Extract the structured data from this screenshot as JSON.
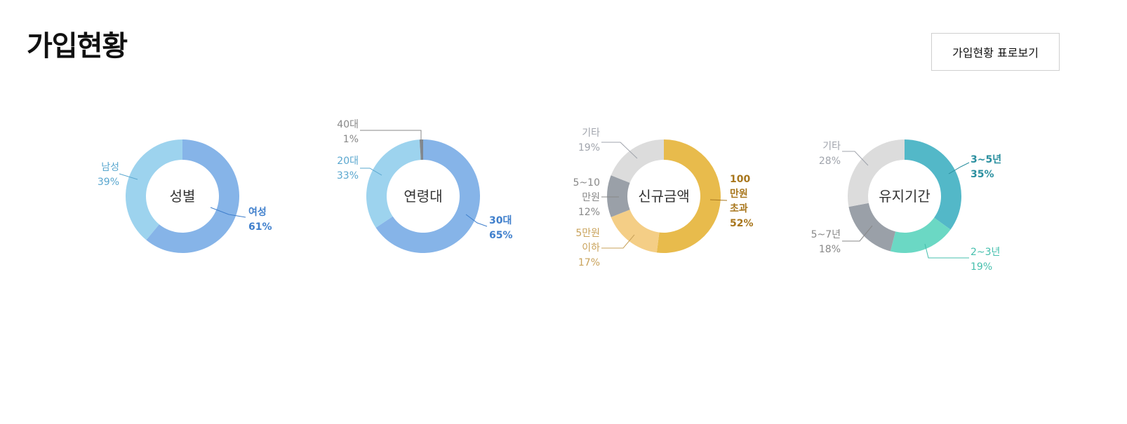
{
  "header": {
    "title": "가입현황",
    "table_button_label": "가입현황 표로보기"
  },
  "chart_data": [
    {
      "type": "pie",
      "center_label": "성별",
      "slices": [
        {
          "label": [
            "여성"
          ],
          "value": 61,
          "value_label": "61%",
          "color": "#86b4e8",
          "label_color": "#3f7fcc",
          "bold": true
        },
        {
          "label": [
            "남성"
          ],
          "value": 39,
          "value_label": "39%",
          "color": "#9dd3ee",
          "label_color": "#5aa7cf",
          "bold": false
        }
      ]
    },
    {
      "type": "pie",
      "center_label": "연령대",
      "slices": [
        {
          "label": [
            "30대"
          ],
          "value": 65,
          "value_label": "65%",
          "color": "#86b4e8",
          "label_color": "#3f7fcc",
          "bold": true
        },
        {
          "label": [
            "20대"
          ],
          "value": 33,
          "value_label": "33%",
          "color": "#9dd3ee",
          "label_color": "#5aa7cf",
          "bold": false
        },
        {
          "label": [
            "40대"
          ],
          "value": 1,
          "value_label": "1%",
          "color": "#7f8790",
          "label_color": "#888888",
          "bold": false
        }
      ]
    },
    {
      "type": "pie",
      "center_label": "신규금액",
      "slices": [
        {
          "label": [
            "100",
            "만원",
            "초과"
          ],
          "value": 52,
          "value_label": "52%",
          "color": "#e8bb4c",
          "label_color": "#a8761c",
          "bold": true
        },
        {
          "label": [
            "5만원",
            "이하"
          ],
          "value": 17,
          "value_label": "17%",
          "color": "#f4ce86",
          "label_color": "#c9a25a",
          "bold": false
        },
        {
          "label": [
            "5~10",
            "만원"
          ],
          "value": 12,
          "value_label": "12%",
          "color": "#9aa0a8",
          "label_color": "#888888",
          "bold": false
        },
        {
          "label": [
            "기타"
          ],
          "value": 19,
          "value_label": "19%",
          "color": "#dcdcdc",
          "label_color": "#a0a4ac",
          "bold": false
        }
      ]
    },
    {
      "type": "pie",
      "center_label": "유지기간",
      "slices": [
        {
          "label": [
            "3~5년"
          ],
          "value": 35,
          "value_label": "35%",
          "color": "#53b8c8",
          "label_color": "#2a8f9f",
          "bold": true
        },
        {
          "label": [
            "2~3년"
          ],
          "value": 19,
          "value_label": "19%",
          "color": "#6bd8c4",
          "label_color": "#45bfad",
          "bold": false
        },
        {
          "label": [
            "5~7년"
          ],
          "value": 18,
          "value_label": "18%",
          "color": "#9aa0a8",
          "label_color": "#888888",
          "bold": false
        },
        {
          "label": [
            "기타"
          ],
          "value": 28,
          "value_label": "28%",
          "color": "#dcdcdc",
          "label_color": "#a0a4ac",
          "bold": false
        }
      ]
    }
  ]
}
